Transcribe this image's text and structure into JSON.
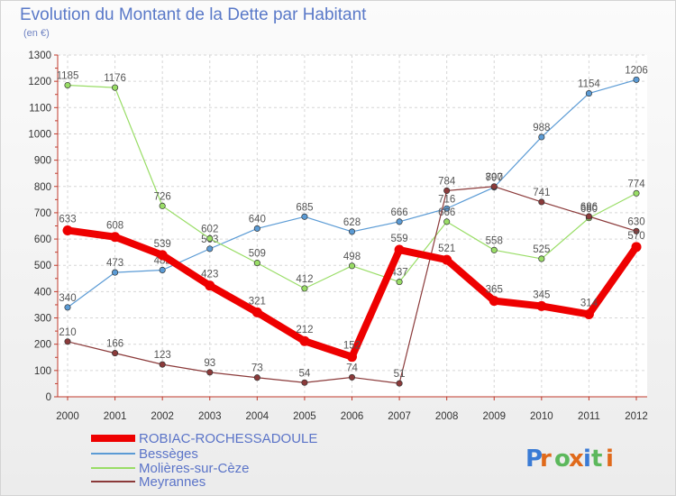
{
  "chart_data": {
    "type": "line",
    "title": "Evolution du Montant de la Dette par Habitant",
    "subtitle": "(en €)",
    "x": [
      "2000",
      "2001",
      "2002",
      "2003",
      "2004",
      "2005",
      "2006",
      "2007",
      "2008",
      "2009",
      "2010",
      "2011",
      "2012"
    ],
    "ylim": [
      0,
      1300
    ],
    "yticks": [
      0,
      100,
      200,
      300,
      400,
      500,
      600,
      700,
      800,
      900,
      1000,
      1100,
      1200,
      1300
    ],
    "grid": true,
    "legend_position": "bottom-left",
    "series": [
      {
        "name": "Bessèges",
        "color": "#5b9bd5",
        "width": 1.2,
        "values": [
          340,
          473,
          482,
          563,
          640,
          685,
          628,
          666,
          716,
          797,
          988,
          1154,
          1206
        ],
        "labels": [
          "340",
          "473",
          "482",
          "563",
          "640",
          "685",
          "628",
          "666",
          "716",
          "797",
          "988",
          "1154",
          "1206"
        ]
      },
      {
        "name": "Molières-sur-Cèze",
        "color": "#99dd66",
        "width": 1.2,
        "values": [
          1185,
          1176,
          726,
          602,
          509,
          412,
          498,
          437,
          666,
          558,
          525,
          680,
          774
        ],
        "labels": [
          "1185",
          "1176",
          "726",
          "602",
          "509",
          "412",
          "498",
          "437",
          "666",
          "558",
          "525",
          "680",
          "774"
        ]
      },
      {
        "name": "Meyrannes",
        "color": "#8b3a3a",
        "width": 1.2,
        "values": [
          210,
          166,
          123,
          93,
          73,
          54,
          74,
          51,
          784,
          800,
          741,
          686,
          630
        ],
        "labels": [
          "210",
          "166",
          "123",
          "93",
          "73",
          "54",
          "74",
          "51",
          "784",
          "800",
          "741",
          "686",
          "630"
        ]
      },
      {
        "name": "ROBIAC-ROCHESSADOULE",
        "color": "#ee0000",
        "width": 8,
        "values": [
          633,
          608,
          539,
          423,
          321,
          212,
          152,
          559,
          521,
          365,
          345,
          314,
          570
        ],
        "labels": [
          "633",
          "608",
          "539",
          "423",
          "321",
          "212",
          "152",
          "559",
          "521",
          "365",
          "345",
          "314",
          "570"
        ]
      }
    ],
    "legend": [
      "ROBIAC-ROCHESSADOULE",
      "Bessèges",
      "Molières-sur-Cèze",
      "Meyrannes"
    ]
  },
  "logo": {
    "text": "Proxiti",
    "letters": [
      "P",
      "r",
      "o",
      "x",
      "i",
      "t",
      "i"
    ],
    "colors": [
      "#3a7bd5",
      "#e06a1b",
      "#5cb85c",
      "#e06a1b",
      "#3a7bd5",
      "#5cb85c",
      "#e06a1b"
    ]
  }
}
